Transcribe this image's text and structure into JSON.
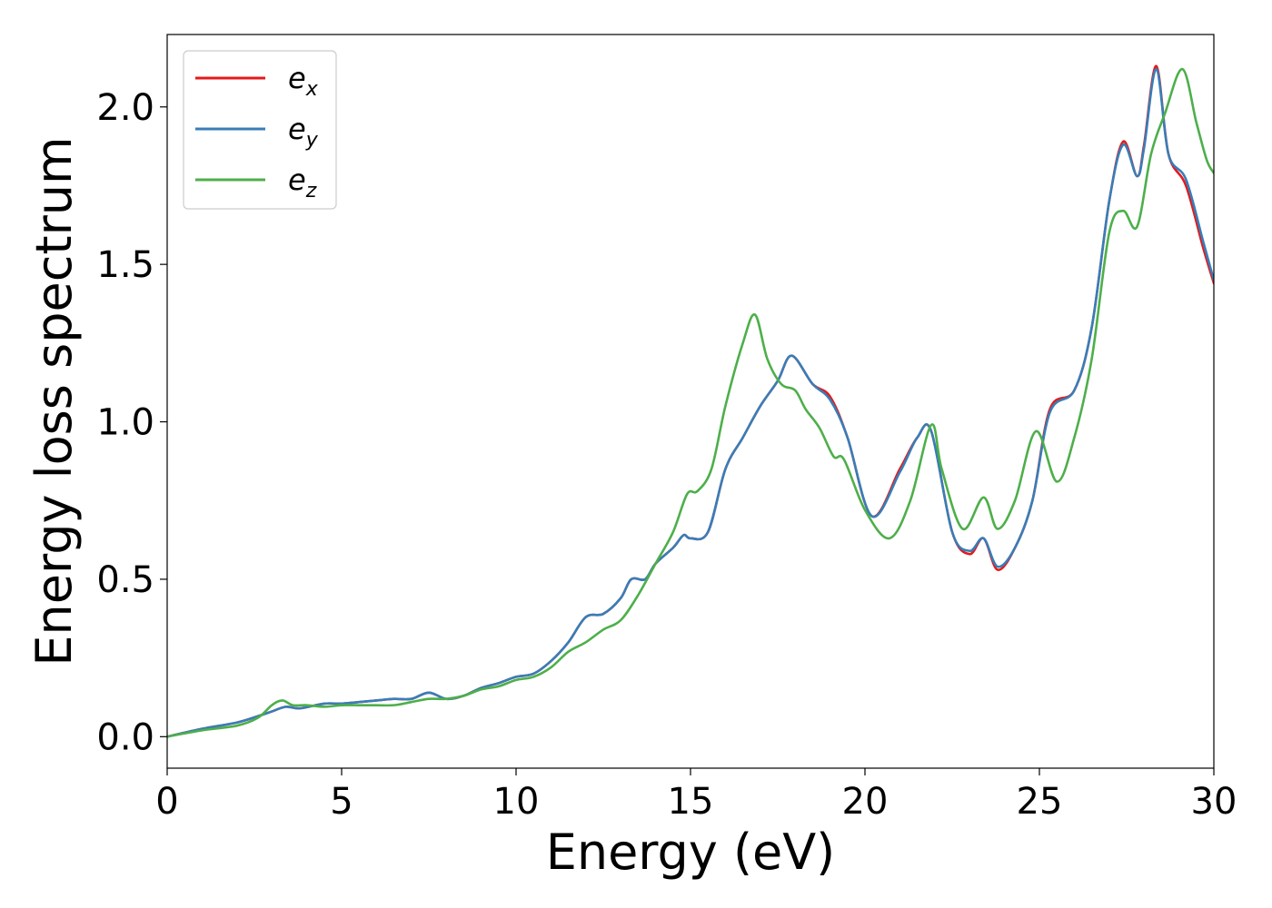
{
  "chart_data": {
    "type": "line",
    "xlabel": "Energy (eV)",
    "ylabel": "Energy loss spectrum",
    "xlim": [
      0,
      30
    ],
    "ylim": [
      -0.1,
      2.23
    ],
    "xticks": [
      0,
      5,
      10,
      15,
      20,
      25,
      30
    ],
    "yticks": [
      0.0,
      0.5,
      1.0,
      1.5,
      2.0
    ],
    "xtick_labels": [
      "0",
      "5",
      "10",
      "15",
      "20",
      "25",
      "30"
    ],
    "ytick_labels": [
      "0.0",
      "0.5",
      "1.0",
      "1.5",
      "2.0"
    ],
    "grid": false,
    "legend_position": "upper-left",
    "series": [
      {
        "name": "e_x",
        "label_main": "e",
        "label_sub": "x",
        "color": "#e41a1c",
        "x": [
          0,
          1,
          2,
          2.6,
          3.0,
          3.4,
          3.8,
          4.5,
          5.0,
          5.5,
          6.0,
          6.5,
          7.0,
          7.5,
          8.0,
          8.5,
          9.0,
          9.5,
          10.0,
          10.5,
          11.0,
          11.5,
          12.0,
          12.5,
          13.0,
          13.3,
          13.7,
          14.0,
          14.5,
          14.8,
          15.0,
          15.5,
          16.0,
          16.5,
          17.0,
          17.5,
          17.9,
          18.5,
          19.0,
          19.5,
          20.2,
          21.0,
          21.5,
          21.9,
          22.5,
          23.0,
          23.4,
          23.8,
          24.3,
          24.8,
          25.3,
          26.0,
          26.5,
          27.0,
          27.4,
          27.8,
          28.0,
          28.35,
          28.7,
          29.2,
          29.7,
          30.0
        ],
        "y": [
          0.0,
          0.025,
          0.045,
          0.065,
          0.08,
          0.095,
          0.09,
          0.105,
          0.105,
          0.11,
          0.115,
          0.12,
          0.12,
          0.14,
          0.12,
          0.13,
          0.155,
          0.17,
          0.19,
          0.2,
          0.24,
          0.3,
          0.38,
          0.39,
          0.44,
          0.5,
          0.5,
          0.55,
          0.6,
          0.64,
          0.63,
          0.65,
          0.85,
          0.95,
          1.05,
          1.13,
          1.21,
          1.12,
          1.08,
          0.95,
          0.7,
          0.85,
          0.95,
          0.97,
          0.65,
          0.58,
          0.63,
          0.53,
          0.6,
          0.75,
          1.04,
          1.1,
          1.3,
          1.7,
          1.89,
          1.78,
          1.88,
          2.13,
          1.85,
          1.75,
          1.55,
          1.44
        ]
      },
      {
        "name": "e_y",
        "label_main": "e",
        "label_sub": "y",
        "color": "#377eb8",
        "x": [
          0,
          1,
          2,
          2.6,
          3.0,
          3.4,
          3.8,
          4.5,
          5.0,
          5.5,
          6.0,
          6.5,
          7.0,
          7.5,
          8.0,
          8.5,
          9.0,
          9.5,
          10.0,
          10.5,
          11.0,
          11.5,
          12.0,
          12.5,
          13.0,
          13.3,
          13.7,
          14.0,
          14.5,
          14.8,
          15.0,
          15.5,
          16.0,
          16.5,
          17.0,
          17.5,
          17.9,
          18.5,
          19.0,
          19.5,
          20.2,
          21.0,
          21.5,
          21.9,
          22.5,
          23.0,
          23.4,
          23.8,
          24.3,
          24.8,
          25.3,
          26.0,
          26.5,
          27.0,
          27.4,
          27.8,
          28.0,
          28.35,
          28.7,
          29.2,
          29.7,
          30.0
        ],
        "y": [
          0.0,
          0.025,
          0.045,
          0.065,
          0.08,
          0.095,
          0.09,
          0.105,
          0.105,
          0.11,
          0.115,
          0.12,
          0.12,
          0.14,
          0.12,
          0.13,
          0.155,
          0.17,
          0.19,
          0.2,
          0.24,
          0.3,
          0.38,
          0.39,
          0.44,
          0.5,
          0.5,
          0.55,
          0.6,
          0.64,
          0.63,
          0.65,
          0.85,
          0.95,
          1.05,
          1.13,
          1.21,
          1.12,
          1.07,
          0.95,
          0.7,
          0.84,
          0.95,
          0.97,
          0.65,
          0.59,
          0.63,
          0.54,
          0.6,
          0.75,
          1.03,
          1.1,
          1.3,
          1.7,
          1.88,
          1.78,
          1.87,
          2.12,
          1.85,
          1.77,
          1.57,
          1.45
        ]
      },
      {
        "name": "e_z",
        "label_main": "e",
        "label_sub": "z",
        "color": "#4daf4a",
        "x": [
          0,
          1,
          2,
          2.6,
          3.0,
          3.3,
          3.6,
          4.0,
          4.5,
          5.0,
          5.5,
          6.0,
          6.5,
          7.0,
          7.5,
          8.0,
          8.5,
          9.0,
          9.5,
          10.0,
          10.5,
          11.0,
          11.5,
          12.0,
          12.5,
          13.0,
          13.5,
          14.0,
          14.5,
          14.9,
          15.2,
          15.6,
          16.0,
          16.5,
          16.85,
          17.2,
          17.6,
          18.0,
          18.3,
          18.7,
          19.1,
          19.4,
          20.0,
          20.7,
          21.3,
          21.9,
          22.2,
          22.8,
          23.4,
          23.8,
          24.3,
          24.9,
          25.5,
          26.0,
          26.5,
          27.0,
          27.4,
          27.8,
          28.2,
          28.6,
          29.1,
          29.5,
          29.8,
          30.0
        ],
        "y": [
          0.0,
          0.02,
          0.035,
          0.06,
          0.1,
          0.115,
          0.1,
          0.1,
          0.095,
          0.1,
          0.1,
          0.1,
          0.1,
          0.11,
          0.12,
          0.12,
          0.13,
          0.15,
          0.16,
          0.18,
          0.19,
          0.22,
          0.27,
          0.3,
          0.34,
          0.37,
          0.45,
          0.55,
          0.65,
          0.77,
          0.78,
          0.85,
          1.05,
          1.25,
          1.34,
          1.2,
          1.12,
          1.1,
          1.04,
          0.98,
          0.89,
          0.88,
          0.72,
          0.63,
          0.75,
          0.99,
          0.85,
          0.66,
          0.76,
          0.66,
          0.75,
          0.97,
          0.81,
          0.95,
          1.2,
          1.6,
          1.67,
          1.62,
          1.85,
          1.98,
          2.12,
          1.95,
          1.83,
          1.79
        ]
      }
    ]
  }
}
